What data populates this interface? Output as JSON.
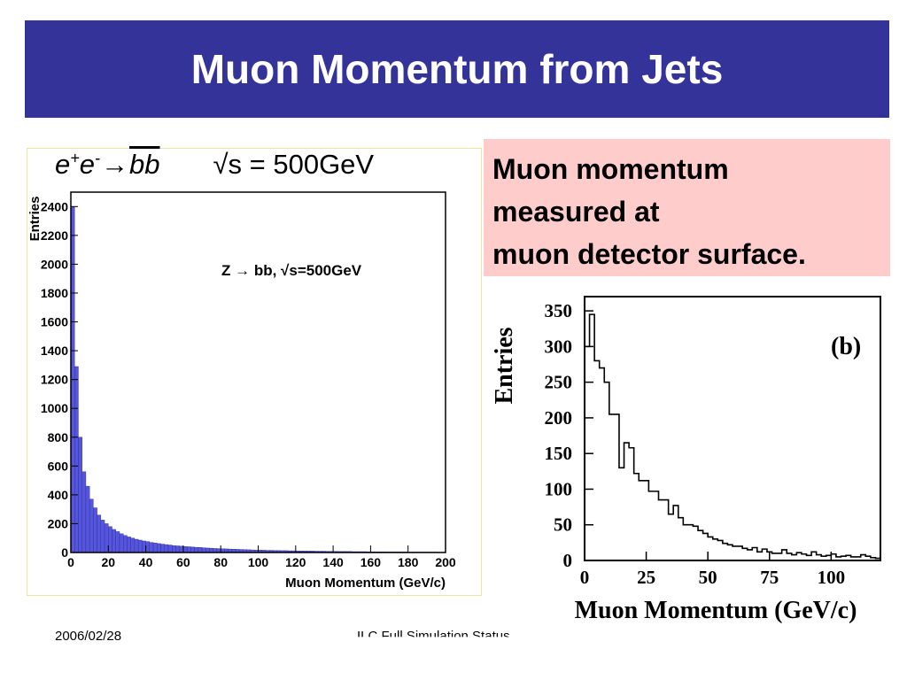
{
  "slide": {
    "title": "Muon Momentum from Jets",
    "left_heading": {
      "e": "e",
      "plus": "+",
      "e2": "e",
      "minus": "-",
      "bb": "bb",
      "sqrt_text": "√s = 500GeV"
    },
    "callout": {
      "line1": "Muon momentum",
      "line2": "measured at",
      "line3": "muon detector surface."
    },
    "footer": {
      "date": "2006/02/28",
      "center": "ILC Full Simulation Status"
    }
  },
  "colors": {
    "title_bg": "#333399",
    "hist_fill": "#5555dd",
    "callout_bg": "#ffcccc"
  },
  "chart_data": [
    {
      "type": "bar",
      "title": "",
      "annotation": "Z → bb, √s=500GeV",
      "xlabel": "Muon Momentum (GeV/c)",
      "ylabel": "Entries",
      "xlim": [
        0,
        200
      ],
      "ylim": [
        0,
        2500
      ],
      "xticks": [
        "0",
        "20",
        "40",
        "60",
        "80",
        "100",
        "120",
        "140",
        "160",
        "180",
        "200"
      ],
      "yticks": [
        "0",
        "200",
        "400",
        "600",
        "800",
        "1000",
        "1200",
        "1400",
        "1600",
        "1800",
        "2000",
        "2200",
        "2400"
      ],
      "bin_width": 2,
      "values": [
        2400,
        1290,
        800,
        560,
        460,
        370,
        310,
        260,
        225,
        200,
        180,
        160,
        145,
        130,
        118,
        108,
        100,
        92,
        86,
        80,
        76,
        70,
        66,
        62,
        58,
        55,
        52,
        48,
        46,
        44,
        42,
        40,
        38,
        36,
        35,
        33,
        31,
        30,
        28,
        27,
        26,
        25,
        24,
        23,
        22,
        21,
        20,
        19,
        18,
        17,
        17,
        16,
        15,
        15,
        14,
        14,
        13,
        13,
        12,
        12,
        11,
        11,
        10,
        10,
        10,
        9,
        9,
        9,
        8,
        8,
        8,
        7,
        7,
        7,
        7,
        6,
        6,
        6,
        6,
        5,
        5,
        5,
        5,
        5,
        4,
        4,
        4,
        4,
        4,
        4,
        3,
        3,
        3,
        3,
        3,
        3,
        3,
        3,
        2,
        2
      ]
    },
    {
      "type": "bar",
      "title": "",
      "annotation": "(b)",
      "xlabel": "Muon Momentum (GeV/c)",
      "ylabel": "Entries",
      "xlim": [
        0,
        120
      ],
      "ylim": [
        0,
        370
      ],
      "xticks": [
        "0",
        "25",
        "50",
        "75",
        "100"
      ],
      "yticks": [
        "0",
        "50",
        "100",
        "150",
        "200",
        "250",
        "300",
        "350"
      ],
      "bin_width": 2,
      "values": [
        300,
        345,
        280,
        270,
        250,
        205,
        205,
        130,
        165,
        158,
        122,
        112,
        112,
        97,
        97,
        85,
        85,
        65,
        77,
        60,
        50,
        50,
        48,
        42,
        38,
        33,
        30,
        28,
        24,
        22,
        20,
        20,
        17,
        15,
        18,
        12,
        16,
        12,
        10,
        10,
        15,
        10,
        8,
        11,
        9,
        7,
        12,
        8,
        6,
        7,
        9,
        5,
        6,
        7,
        5,
        5,
        8,
        6,
        4,
        3
      ]
    }
  ]
}
